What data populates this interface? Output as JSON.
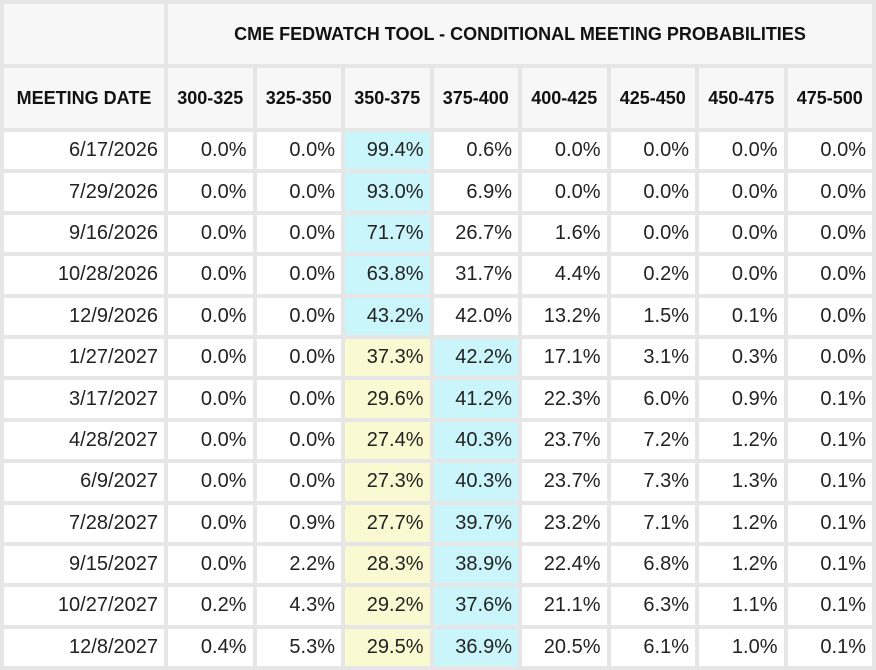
{
  "chart_data": {
    "type": "table",
    "title": "CME FEDWATCH TOOL - CONDITIONAL MEETING PROBABILITIES",
    "date_header": "MEETING DATE",
    "columns": [
      "300-325",
      "325-350",
      "350-375",
      "375-400",
      "400-425",
      "425-450",
      "450-475",
      "475-500"
    ],
    "rows": [
      {
        "date": "6/17/2026",
        "values": [
          "0.0%",
          "0.0%",
          "99.4%",
          "0.6%",
          "0.0%",
          "0.0%",
          "0.0%",
          "0.0%"
        ],
        "highlight": {
          "primary": 2
        }
      },
      {
        "date": "7/29/2026",
        "values": [
          "0.0%",
          "0.0%",
          "93.0%",
          "6.9%",
          "0.0%",
          "0.0%",
          "0.0%",
          "0.0%"
        ],
        "highlight": {
          "primary": 2
        }
      },
      {
        "date": "9/16/2026",
        "values": [
          "0.0%",
          "0.0%",
          "71.7%",
          "26.7%",
          "1.6%",
          "0.0%",
          "0.0%",
          "0.0%"
        ],
        "highlight": {
          "primary": 2
        }
      },
      {
        "date": "10/28/2026",
        "values": [
          "0.0%",
          "0.0%",
          "63.8%",
          "31.7%",
          "4.4%",
          "0.2%",
          "0.0%",
          "0.0%"
        ],
        "highlight": {
          "primary": 2
        }
      },
      {
        "date": "12/9/2026",
        "values": [
          "0.0%",
          "0.0%",
          "43.2%",
          "42.0%",
          "13.2%",
          "1.5%",
          "0.1%",
          "0.0%"
        ],
        "highlight": {
          "primary": 2
        }
      },
      {
        "date": "1/27/2027",
        "values": [
          "0.0%",
          "0.0%",
          "37.3%",
          "42.2%",
          "17.1%",
          "3.1%",
          "0.3%",
          "0.0%"
        ],
        "highlight": {
          "secondary": 2,
          "primary": 3
        }
      },
      {
        "date": "3/17/2027",
        "values": [
          "0.0%",
          "0.0%",
          "29.6%",
          "41.2%",
          "22.3%",
          "6.0%",
          "0.9%",
          "0.1%"
        ],
        "highlight": {
          "secondary": 2,
          "primary": 3
        }
      },
      {
        "date": "4/28/2027",
        "values": [
          "0.0%",
          "0.0%",
          "27.4%",
          "40.3%",
          "23.7%",
          "7.2%",
          "1.2%",
          "0.1%"
        ],
        "highlight": {
          "secondary": 2,
          "primary": 3
        }
      },
      {
        "date": "6/9/2027",
        "values": [
          "0.0%",
          "0.0%",
          "27.3%",
          "40.3%",
          "23.7%",
          "7.3%",
          "1.3%",
          "0.1%"
        ],
        "highlight": {
          "secondary": 2,
          "primary": 3
        }
      },
      {
        "date": "7/28/2027",
        "values": [
          "0.0%",
          "0.9%",
          "27.7%",
          "39.7%",
          "23.2%",
          "7.1%",
          "1.2%",
          "0.1%"
        ],
        "highlight": {
          "secondary": 2,
          "primary": 3
        }
      },
      {
        "date": "9/15/2027",
        "values": [
          "0.0%",
          "2.2%",
          "28.3%",
          "38.9%",
          "22.4%",
          "6.8%",
          "1.2%",
          "0.1%"
        ],
        "highlight": {
          "secondary": 2,
          "primary": 3
        }
      },
      {
        "date": "10/27/2027",
        "values": [
          "0.2%",
          "4.3%",
          "29.2%",
          "37.6%",
          "21.1%",
          "6.3%",
          "1.1%",
          "0.1%"
        ],
        "highlight": {
          "secondary": 2,
          "primary": 3
        }
      },
      {
        "date": "12/8/2027",
        "values": [
          "0.4%",
          "5.3%",
          "29.5%",
          "36.9%",
          "20.5%",
          "6.1%",
          "1.0%",
          "0.1%"
        ],
        "highlight": {
          "secondary": 2,
          "primary": 3
        }
      }
    ],
    "colors": {
      "primary_highlight": "#c9f5fb",
      "secondary_highlight": "#fafad2",
      "header_background": "#f7f7f7",
      "grid": "#e6e6e6"
    }
  }
}
